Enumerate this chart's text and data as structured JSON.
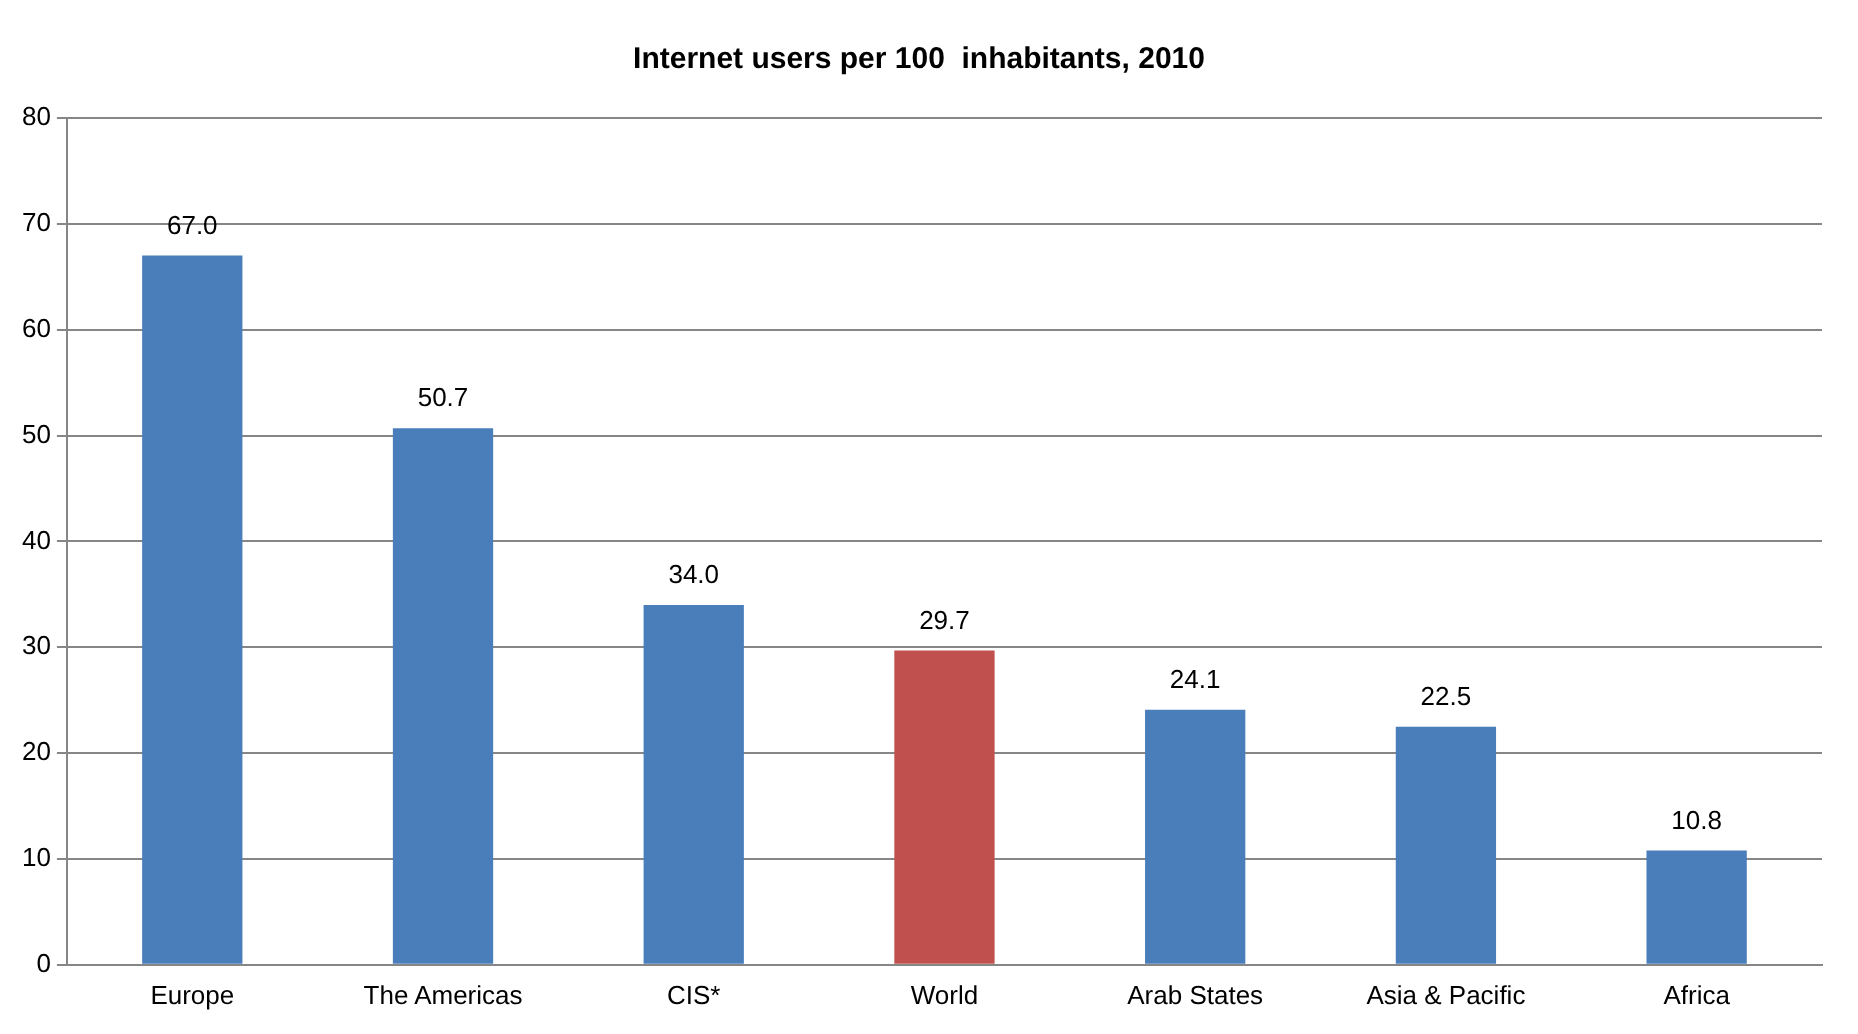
{
  "chart_data": {
    "type": "bar",
    "title": "Internet users per 100  inhabitants, 2010",
    "categories": [
      "Europe",
      "The Americas",
      "CIS*",
      "World",
      "Arab States",
      "Asia & Pacific",
      "Africa"
    ],
    "values": [
      67.0,
      50.7,
      34.0,
      29.7,
      24.1,
      22.5,
      10.8
    ],
    "colors": [
      "#4a7ebb",
      "#4a7ebb",
      "#4a7ebb",
      "#c0504d",
      "#4a7ebb",
      "#4a7ebb",
      "#4a7ebb"
    ],
    "value_labels": [
      "67.0",
      "50.7",
      "34.0",
      "29.7",
      "24.1",
      "22.5",
      "10.8"
    ],
    "ylim": [
      0,
      80
    ],
    "yticks": [
      0,
      10,
      20,
      30,
      40,
      50,
      60,
      70,
      80
    ],
    "grid": "y",
    "legend": false
  }
}
